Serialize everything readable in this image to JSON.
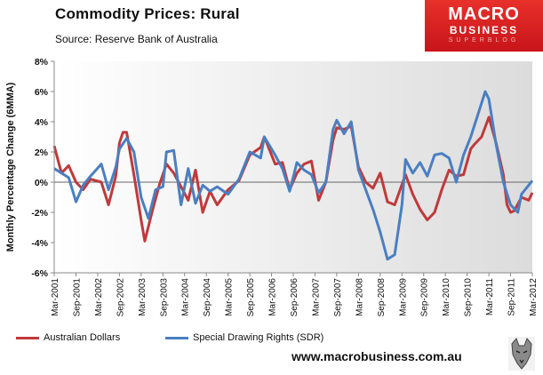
{
  "header": {
    "title": "Commodity Prices: Rural",
    "subtitle": "Source: Reserve Bank of Australia"
  },
  "logo": {
    "line1": "MACRO",
    "line2": "BUSINESS",
    "line3": "SUPERBLOG"
  },
  "footer": {
    "url": "www.macrobusiness.com.au"
  },
  "colors": {
    "aud": "#c0393b",
    "sdr": "#4a7fc1",
    "logo_bg": "#d8201f"
  },
  "chart_data": {
    "type": "line",
    "title": "Commodity Prices: Rural",
    "xlabel": "",
    "ylabel": "Monthly Percentage Change (6MMA)",
    "ylim": [
      -6,
      8
    ],
    "yticks": [
      -6,
      -4,
      -2,
      0,
      2,
      4,
      6,
      8
    ],
    "ytick_labels": [
      "-6%",
      "-4%",
      "-2%",
      "0%",
      "2%",
      "4%",
      "6%",
      "8%"
    ],
    "x_start": "2001-03",
    "x_end": "2012-03",
    "xtick_labels": [
      "Mar-2001",
      "Sep-2001",
      "Mar-2002",
      "Sep-2002",
      "Mar-2003",
      "Sep-2003",
      "Mar-2004",
      "Sep-2004",
      "Mar-2005",
      "Sep-2005",
      "Mar-2006",
      "Sep-2006",
      "Mar-2007",
      "Sep-2007",
      "Mar-2008",
      "Sep-2008",
      "Mar-2009",
      "Sep-2009",
      "Mar-2010",
      "Sep-2010",
      "Mar-2011",
      "Sep-2011",
      "Mar-2012"
    ],
    "grid": false,
    "legend_position": "bottom",
    "series": [
      {
        "name": "Australian Dollars",
        "color": "#c0393b",
        "points": [
          [
            "2001-03",
            2.4
          ],
          [
            "2001-05",
            0.6
          ],
          [
            "2001-07",
            1.1
          ],
          [
            "2001-09",
            0.0
          ],
          [
            "2001-11",
            -0.5
          ],
          [
            "2002-01",
            0.2
          ],
          [
            "2002-04",
            0.0
          ],
          [
            "2002-06",
            -1.5
          ],
          [
            "2002-08",
            0.4
          ],
          [
            "2002-09",
            2.6
          ],
          [
            "2002-10",
            3.3
          ],
          [
            "2002-11",
            3.3
          ],
          [
            "2003-01",
            0.5
          ],
          [
            "2003-03",
            -2.5
          ],
          [
            "2003-04",
            -3.9
          ],
          [
            "2003-06",
            -2.0
          ],
          [
            "2003-08",
            -0.2
          ],
          [
            "2003-10",
            1.2
          ],
          [
            "2003-12",
            0.6
          ],
          [
            "2004-02",
            -0.3
          ],
          [
            "2004-04",
            -1.2
          ],
          [
            "2004-06",
            0.8
          ],
          [
            "2004-08",
            -2.0
          ],
          [
            "2004-10",
            -0.6
          ],
          [
            "2004-12",
            -1.5
          ],
          [
            "2005-03",
            -0.5
          ],
          [
            "2005-06",
            0.1
          ],
          [
            "2005-09",
            1.8
          ],
          [
            "2005-12",
            2.3
          ],
          [
            "2006-01",
            3.0
          ],
          [
            "2006-04",
            1.2
          ],
          [
            "2006-06",
            1.3
          ],
          [
            "2006-08",
            -0.5
          ],
          [
            "2006-10",
            0.6
          ],
          [
            "2006-12",
            1.2
          ],
          [
            "2007-02",
            1.4
          ],
          [
            "2007-04",
            -1.2
          ],
          [
            "2007-06",
            0.0
          ],
          [
            "2007-08",
            2.8
          ],
          [
            "2007-09",
            3.6
          ],
          [
            "2007-11",
            3.5
          ],
          [
            "2008-01",
            3.7
          ],
          [
            "2008-03",
            1.0
          ],
          [
            "2008-05",
            0.0
          ],
          [
            "2008-07",
            -0.4
          ],
          [
            "2008-09",
            0.6
          ],
          [
            "2008-11",
            -1.3
          ],
          [
            "2009-01",
            -1.5
          ],
          [
            "2009-04",
            0.5
          ],
          [
            "2009-06",
            -0.8
          ],
          [
            "2009-08",
            -1.8
          ],
          [
            "2009-10",
            -2.5
          ],
          [
            "2009-12",
            -2.0
          ],
          [
            "2010-02",
            -0.5
          ],
          [
            "2010-04",
            0.8
          ],
          [
            "2010-06",
            0.4
          ],
          [
            "2010-08",
            0.5
          ],
          [
            "2010-10",
            2.2
          ],
          [
            "2010-11",
            2.5
          ],
          [
            "2011-01",
            3.0
          ],
          [
            "2011-03",
            4.3
          ],
          [
            "2011-05",
            2.6
          ],
          [
            "2011-07",
            0.5
          ],
          [
            "2011-08",
            -1.5
          ],
          [
            "2011-09",
            -2.0
          ],
          [
            "2011-10",
            -1.9
          ],
          [
            "2011-12",
            -1.0
          ],
          [
            "2012-02",
            -1.2
          ],
          [
            "2012-03",
            -0.7
          ]
        ]
      },
      {
        "name": "Special Drawing Rights (SDR)",
        "color": "#4a7fc1",
        "points": [
          [
            "2001-03",
            0.9
          ],
          [
            "2001-05",
            0.6
          ],
          [
            "2001-07",
            0.3
          ],
          [
            "2001-09",
            -1.3
          ],
          [
            "2001-11",
            -0.2
          ],
          [
            "2002-01",
            0.4
          ],
          [
            "2002-04",
            1.2
          ],
          [
            "2002-06",
            -0.5
          ],
          [
            "2002-08",
            1.0
          ],
          [
            "2002-09",
            2.2
          ],
          [
            "2002-11",
            2.9
          ],
          [
            "2003-01",
            2.0
          ],
          [
            "2003-03",
            -1.0
          ],
          [
            "2003-05",
            -2.4
          ],
          [
            "2003-07",
            -0.5
          ],
          [
            "2003-09",
            -0.3
          ],
          [
            "2003-10",
            2.0
          ],
          [
            "2003-12",
            2.1
          ],
          [
            "2004-02",
            -1.5
          ],
          [
            "2004-04",
            0.9
          ],
          [
            "2004-06",
            -1.4
          ],
          [
            "2004-08",
            -0.2
          ],
          [
            "2004-10",
            -0.6
          ],
          [
            "2004-12",
            -0.3
          ],
          [
            "2005-03",
            -0.8
          ],
          [
            "2005-06",
            0.2
          ],
          [
            "2005-09",
            2.0
          ],
          [
            "2005-12",
            1.6
          ],
          [
            "2006-01",
            3.0
          ],
          [
            "2006-04",
            1.8
          ],
          [
            "2006-06",
            0.9
          ],
          [
            "2006-08",
            -0.6
          ],
          [
            "2006-10",
            1.3
          ],
          [
            "2006-12",
            0.8
          ],
          [
            "2007-02",
            0.5
          ],
          [
            "2007-04",
            -0.7
          ],
          [
            "2007-06",
            0.0
          ],
          [
            "2007-08",
            3.5
          ],
          [
            "2007-09",
            4.1
          ],
          [
            "2007-11",
            3.2
          ],
          [
            "2008-01",
            4.0
          ],
          [
            "2008-03",
            0.8
          ],
          [
            "2008-05",
            -0.5
          ],
          [
            "2008-07",
            -1.8
          ],
          [
            "2008-09",
            -3.3
          ],
          [
            "2008-11",
            -5.1
          ],
          [
            "2009-01",
            -4.8
          ],
          [
            "2009-03",
            -1.5
          ],
          [
            "2009-04",
            1.5
          ],
          [
            "2009-06",
            0.6
          ],
          [
            "2009-08",
            1.3
          ],
          [
            "2009-10",
            0.4
          ],
          [
            "2009-12",
            1.8
          ],
          [
            "2010-02",
            1.9
          ],
          [
            "2010-04",
            1.6
          ],
          [
            "2010-06",
            0.0
          ],
          [
            "2010-08",
            1.8
          ],
          [
            "2010-10",
            3.0
          ],
          [
            "2010-12",
            4.5
          ],
          [
            "2011-02",
            6.0
          ],
          [
            "2011-03",
            5.5
          ],
          [
            "2011-05",
            2.5
          ],
          [
            "2011-07",
            0.0
          ],
          [
            "2011-09",
            -1.5
          ],
          [
            "2011-11",
            -2.0
          ],
          [
            "2011-12",
            -0.8
          ],
          [
            "2012-02",
            -0.2
          ],
          [
            "2012-03",
            0.1
          ]
        ]
      }
    ]
  }
}
